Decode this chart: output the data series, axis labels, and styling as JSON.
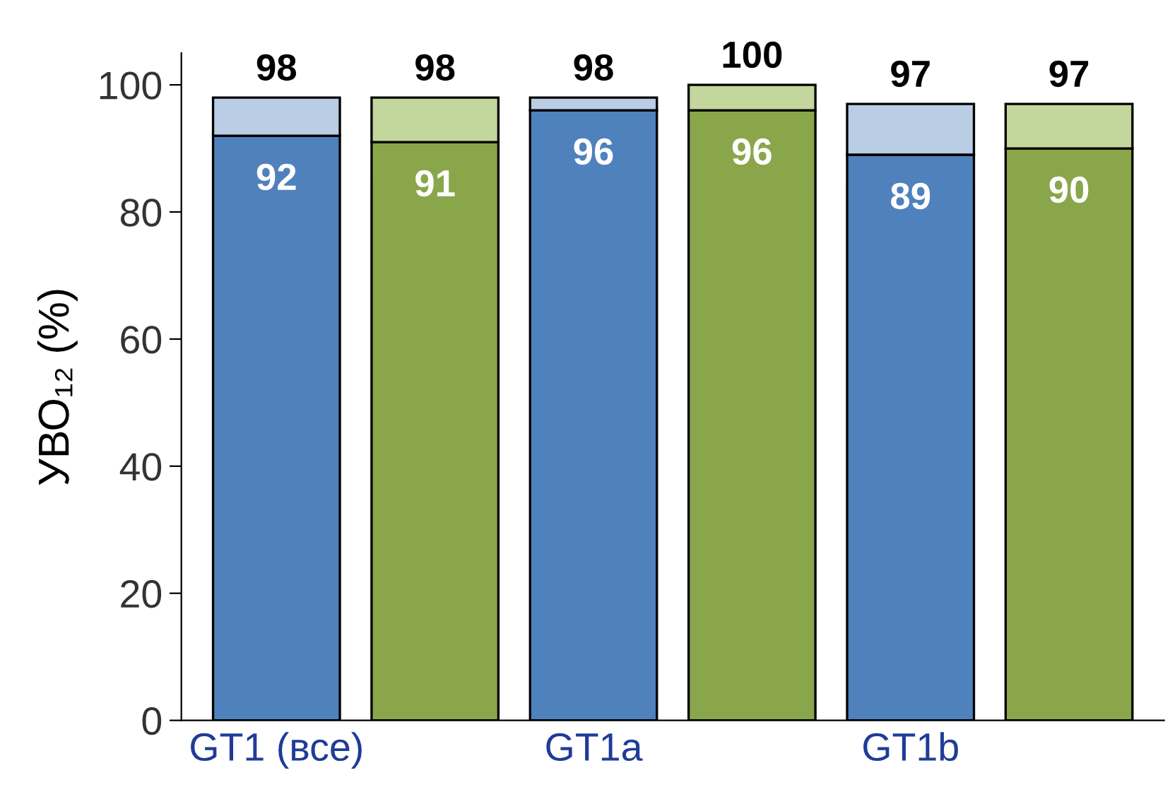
{
  "chart_data": {
    "type": "bar",
    "stacked": true,
    "ylabel": "УВО₁₂ (%)",
    "categories": [
      "GT1 (все)",
      null,
      "GT1a",
      null,
      "GT1b",
      null
    ],
    "ylim": [
      0,
      105
    ],
    "yticks": [
      0,
      20,
      40,
      60,
      80,
      100
    ],
    "grid": false,
    "totals": [
      "98",
      "98",
      "98",
      "100",
      "97",
      "97"
    ],
    "series": [
      {
        "colors": [
          "#4f81bd",
          "#8aa64b",
          "#4f81bd",
          "#8aa64b",
          "#4f81bd",
          "#8aa64b"
        ],
        "values": [
          92,
          91,
          96,
          96,
          89,
          90
        ],
        "value_labels": [
          "92",
          "91",
          "96",
          "96",
          "89",
          "90"
        ]
      },
      {
        "colors": [
          "#b9cde5",
          "#c3d69b",
          "#b9cde5",
          "#c3d69b",
          "#b9cde5",
          "#c3d69b"
        ],
        "values": [
          6,
          7,
          2,
          4,
          8,
          7
        ]
      }
    ]
  }
}
